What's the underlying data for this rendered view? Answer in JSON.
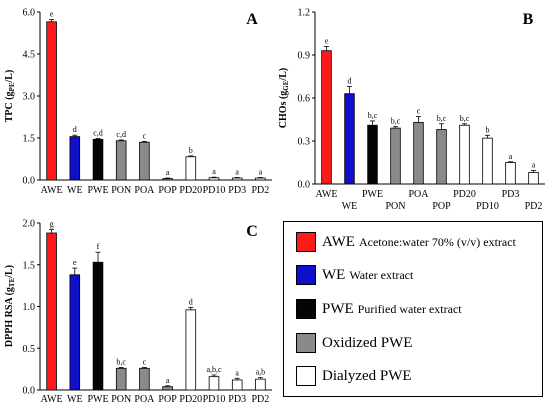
{
  "legend": {
    "entries": [
      {
        "short": "AWE",
        "desc": "Acetone:water 70% (v/v) extract",
        "color": "#ff1a1a"
      },
      {
        "short": "WE",
        "desc": "Water extract",
        "color": "#1010cc"
      },
      {
        "short": "PWE",
        "desc": "Purified water extract",
        "color": "#050505"
      },
      {
        "short": "",
        "desc": "Oxidized PWE",
        "color": "#8a8a8a"
      },
      {
        "short": "",
        "desc": "Dialyzed PWE",
        "color": "#ffffff"
      }
    ]
  },
  "chart_data": [
    {
      "panel": "A",
      "type": "bar",
      "ylabel_main": "TPC (g",
      "ylabel_sub": "PE",
      "ylabel_end": "/L)",
      "categories": [
        "AWE",
        "WE",
        "PWE",
        "PON",
        "POA",
        "POP",
        "PD20",
        "PD10",
        "PD3",
        "PD2"
      ],
      "values": [
        5.65,
        1.55,
        1.45,
        1.4,
        1.35,
        0.05,
        0.83,
        0.08,
        0.07,
        0.07
      ],
      "errors": [
        0.08,
        0.05,
        0.03,
        0.03,
        0.03,
        0.02,
        0.03,
        0.02,
        0.02,
        0.02
      ],
      "letters": [
        "e",
        "d",
        "c,d",
        "c,d",
        "c",
        "a",
        "b",
        "a",
        "a",
        "a"
      ],
      "colors": [
        "#ff1a1a",
        "#1010cc",
        "#050505",
        "#8a8a8a",
        "#8a8a8a",
        "#8a8a8a",
        "#ffffff",
        "#ffffff",
        "#ffffff",
        "#ffffff"
      ],
      "ylim": [
        0,
        6.0
      ],
      "yticks": [
        "0.0",
        "1.5",
        "3.0",
        "4.5",
        "6.0"
      ]
    },
    {
      "panel": "B",
      "type": "bar",
      "ylabel_main": "CHOs (g",
      "ylabel_sub": "GE",
      "ylabel_end": "/L)",
      "categories": [
        "AWE",
        "WE",
        "PWE",
        "PON",
        "POA",
        "POP",
        "PD20",
        "PD10",
        "PD3",
        "PD2"
      ],
      "values": [
        0.93,
        0.63,
        0.41,
        0.39,
        0.43,
        0.38,
        0.41,
        0.32,
        0.15,
        0.08
      ],
      "errors": [
        0.03,
        0.05,
        0.03,
        0.01,
        0.04,
        0.04,
        0.01,
        0.02,
        0.005,
        0.015
      ],
      "letters": [
        "e",
        "d",
        "b,c",
        "b,c",
        "c",
        "b,c",
        "b,c",
        "b",
        "a",
        "a"
      ],
      "colors": [
        "#ff1a1a",
        "#1010cc",
        "#050505",
        "#8a8a8a",
        "#8a8a8a",
        "#8a8a8a",
        "#ffffff",
        "#ffffff",
        "#ffffff",
        "#ffffff"
      ],
      "ylim": [
        0,
        1.2
      ],
      "yticks": [
        "0.0",
        "0.3",
        "0.6",
        "0.9",
        "1.2"
      ]
    },
    {
      "panel": "C",
      "type": "bar",
      "ylabel_main": "DPPH RSA (g",
      "ylabel_sub": "TE",
      "ylabel_end": "/L)",
      "categories": [
        "AWE",
        "WE",
        "PWE",
        "PON",
        "POA",
        "POP",
        "PD20",
        "PD10",
        "PD3",
        "PD2"
      ],
      "values": [
        1.88,
        1.38,
        1.53,
        0.26,
        0.26,
        0.04,
        0.96,
        0.16,
        0.12,
        0.13
      ],
      "errors": [
        0.04,
        0.08,
        0.12,
        0.01,
        0.01,
        0.01,
        0.03,
        0.02,
        0.02,
        0.02
      ],
      "letters": [
        "g",
        "e",
        "f",
        "b,c",
        "c",
        "a",
        "d",
        "a,b,c",
        "a",
        "a,b"
      ],
      "colors": [
        "#ff1a1a",
        "#1010cc",
        "#050505",
        "#8a8a8a",
        "#8a8a8a",
        "#8a8a8a",
        "#ffffff",
        "#ffffff",
        "#ffffff",
        "#ffffff"
      ],
      "ylim": [
        0,
        2.0
      ],
      "yticks": [
        "0.0",
        "0.5",
        "1.0",
        "1.5",
        "2.0"
      ]
    }
  ]
}
